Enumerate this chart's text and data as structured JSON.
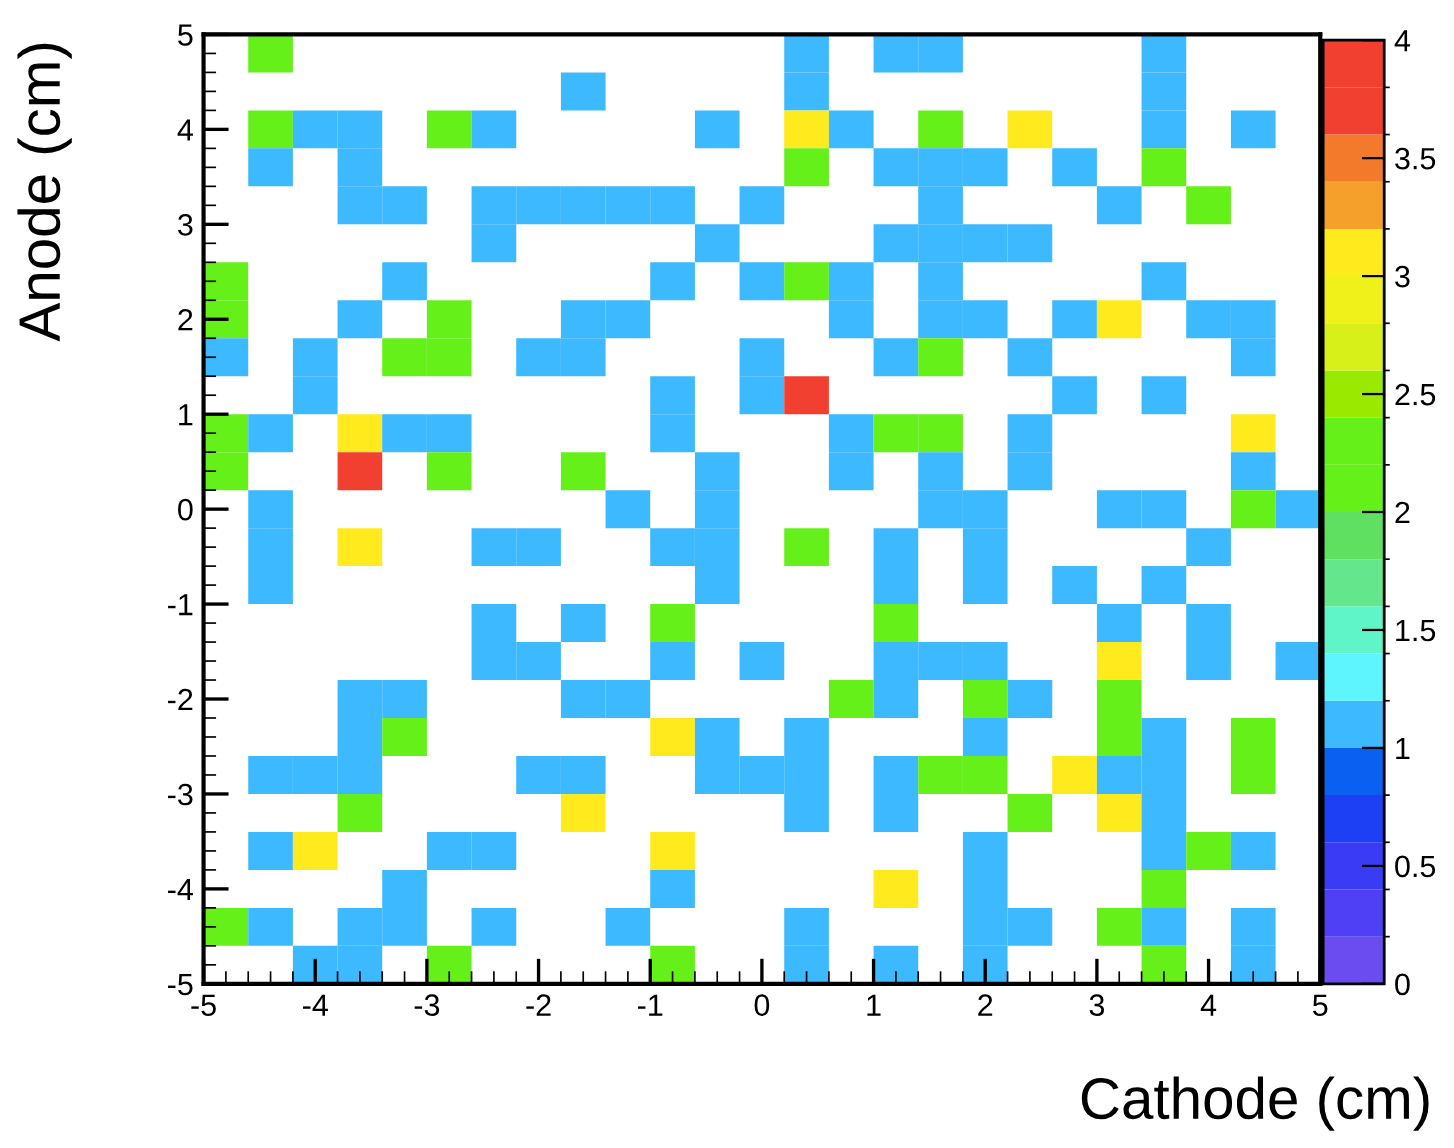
{
  "chart_data": {
    "type": "heatmap",
    "xlabel": "Cathode (cm)",
    "ylabel": "Anode (cm)",
    "xlim": [
      -5,
      5
    ],
    "xticks": [
      -5,
      -4,
      -3,
      -2,
      -1,
      0,
      1,
      2,
      3,
      4,
      5
    ],
    "ylim": [
      -5,
      5
    ],
    "yticks": [
      -5,
      -4,
      -3,
      -2,
      -1,
      0,
      1,
      2,
      3,
      4,
      5
    ],
    "clim": [
      0,
      4
    ],
    "cticks": [
      0,
      0.5,
      1,
      1.5,
      2,
      2.5,
      3,
      3.5,
      4
    ],
    "grid": false,
    "cells": [
      [
        null,
        2,
        null,
        null,
        null,
        null,
        null,
        null,
        null,
        null,
        null,
        null,
        null,
        1,
        null,
        1,
        1,
        null,
        null,
        null,
        null,
        1,
        null,
        null,
        null
      ],
      [
        null,
        null,
        null,
        null,
        null,
        null,
        null,
        null,
        1,
        null,
        null,
        null,
        null,
        1,
        null,
        null,
        null,
        null,
        null,
        null,
        null,
        1,
        null,
        null,
        null
      ],
      [
        null,
        2,
        1,
        1,
        null,
        2,
        1,
        null,
        null,
        null,
        null,
        1,
        null,
        3,
        1,
        null,
        2,
        null,
        3,
        null,
        null,
        1,
        null,
        1,
        null
      ],
      [
        null,
        1,
        null,
        1,
        null,
        null,
        null,
        null,
        null,
        null,
        null,
        null,
        null,
        2,
        null,
        1,
        1,
        1,
        null,
        1,
        null,
        2,
        null,
        null,
        null
      ],
      [
        null,
        null,
        null,
        1,
        1,
        null,
        1,
        1,
        1,
        1,
        1,
        null,
        1,
        null,
        null,
        null,
        1,
        null,
        null,
        null,
        1,
        null,
        2,
        null,
        null
      ],
      [
        null,
        null,
        null,
        null,
        null,
        null,
        1,
        null,
        null,
        null,
        null,
        1,
        null,
        null,
        null,
        1,
        1,
        1,
        1,
        null,
        null,
        null,
        null,
        null,
        null
      ],
      [
        2,
        null,
        null,
        null,
        1,
        null,
        null,
        null,
        null,
        null,
        1,
        null,
        1,
        2,
        1,
        null,
        1,
        null,
        null,
        null,
        null,
        1,
        null,
        null,
        null
      ],
      [
        2,
        null,
        null,
        1,
        null,
        2,
        null,
        null,
        1,
        1,
        null,
        null,
        null,
        null,
        1,
        null,
        1,
        1,
        null,
        1,
        3,
        null,
        1,
        1,
        null
      ],
      [
        1,
        null,
        1,
        null,
        2,
        2,
        null,
        1,
        1,
        null,
        null,
        null,
        1,
        null,
        null,
        1,
        2,
        null,
        1,
        null,
        null,
        null,
        null,
        1,
        null
      ],
      [
        null,
        null,
        1,
        null,
        null,
        null,
        null,
        null,
        null,
        null,
        1,
        null,
        1,
        4,
        null,
        null,
        null,
        null,
        null,
        1,
        null,
        1,
        null,
        null,
        null
      ],
      [
        2,
        1,
        null,
        3,
        1,
        1,
        null,
        null,
        null,
        null,
        1,
        null,
        null,
        null,
        1,
        2,
        2,
        null,
        1,
        null,
        null,
        null,
        null,
        3,
        null
      ],
      [
        2,
        null,
        null,
        4,
        null,
        2,
        null,
        null,
        2,
        null,
        null,
        1,
        null,
        null,
        1,
        null,
        1,
        null,
        1,
        null,
        null,
        null,
        null,
        1,
        null
      ],
      [
        null,
        1,
        null,
        null,
        null,
        null,
        null,
        null,
        null,
        1,
        null,
        1,
        null,
        null,
        null,
        null,
        1,
        1,
        null,
        null,
        1,
        1,
        null,
        2,
        1
      ],
      [
        null,
        1,
        null,
        3,
        null,
        null,
        1,
        1,
        null,
        null,
        1,
        1,
        null,
        2,
        null,
        1,
        null,
        1,
        null,
        null,
        null,
        null,
        1,
        null,
        null
      ],
      [
        null,
        1,
        null,
        null,
        null,
        null,
        null,
        null,
        null,
        null,
        null,
        1,
        null,
        null,
        null,
        1,
        null,
        1,
        null,
        1,
        null,
        1,
        null,
        null,
        null
      ],
      [
        null,
        null,
        null,
        null,
        null,
        null,
        1,
        null,
        1,
        null,
        2,
        null,
        null,
        null,
        null,
        2,
        null,
        null,
        null,
        null,
        1,
        null,
        1,
        null,
        null
      ],
      [
        null,
        null,
        null,
        null,
        null,
        null,
        1,
        1,
        null,
        null,
        1,
        null,
        1,
        null,
        null,
        1,
        1,
        1,
        null,
        null,
        3,
        null,
        1,
        null,
        1
      ],
      [
        null,
        null,
        null,
        1,
        1,
        null,
        null,
        null,
        1,
        1,
        null,
        null,
        null,
        null,
        2,
        1,
        null,
        2,
        1,
        null,
        2,
        null,
        null,
        null,
        null
      ],
      [
        null,
        null,
        null,
        1,
        2,
        null,
        null,
        null,
        null,
        null,
        3,
        1,
        null,
        1,
        null,
        null,
        null,
        1,
        null,
        null,
        2,
        1,
        null,
        2,
        null
      ],
      [
        null,
        1,
        1,
        1,
        null,
        null,
        null,
        1,
        1,
        null,
        null,
        1,
        1,
        1,
        null,
        1,
        2,
        2,
        null,
        3,
        1,
        1,
        null,
        2,
        null
      ],
      [
        null,
        null,
        null,
        2,
        null,
        null,
        null,
        null,
        3,
        null,
        null,
        null,
        null,
        1,
        null,
        1,
        null,
        null,
        2,
        null,
        3,
        1,
        null,
        null,
        null
      ],
      [
        null,
        1,
        3,
        null,
        null,
        1,
        1,
        null,
        null,
        null,
        3,
        null,
        null,
        null,
        null,
        null,
        null,
        1,
        null,
        null,
        null,
        1,
        2,
        1,
        null
      ],
      [
        null,
        null,
        null,
        null,
        1,
        null,
        null,
        null,
        null,
        null,
        1,
        null,
        null,
        null,
        null,
        3,
        null,
        1,
        null,
        null,
        null,
        2,
        null,
        null,
        null
      ],
      [
        2,
        1,
        null,
        1,
        1,
        null,
        1,
        null,
        null,
        1,
        null,
        null,
        null,
        1,
        null,
        null,
        null,
        1,
        1,
        null,
        2,
        1,
        null,
        1,
        null
      ],
      [
        null,
        null,
        1,
        1,
        null,
        2,
        null,
        null,
        null,
        null,
        2,
        null,
        null,
        1,
        null,
        1,
        null,
        1,
        null,
        null,
        null,
        2,
        null,
        1,
        null
      ]
    ]
  }
}
